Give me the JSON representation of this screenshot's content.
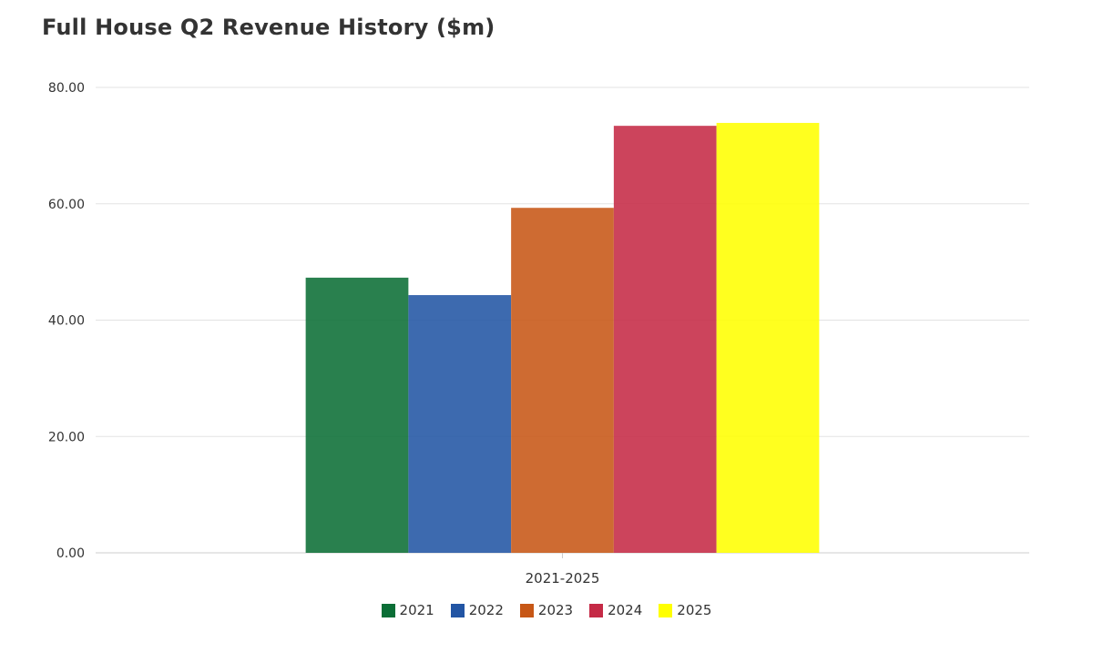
{
  "chart_data": {
    "type": "bar",
    "title": "Full House Q2 Revenue History ($m)",
    "categories": [
      "2021-2025"
    ],
    "series": [
      {
        "name": "2021",
        "color": "#0b6e36",
        "values": [
          47.3
        ]
      },
      {
        "name": "2022",
        "color": "#2255a4",
        "values": [
          44.3
        ]
      },
      {
        "name": "2023",
        "color": "#c75716",
        "values": [
          59.3
        ]
      },
      {
        "name": "2024",
        "color": "#c52a46",
        "values": [
          73.4
        ]
      },
      {
        "name": "2025",
        "color": "#ffff00",
        "values": [
          73.9
        ]
      }
    ],
    "ylim": [
      0,
      80
    ],
    "yticks": [
      "0.00",
      "20.00",
      "40.00",
      "60.00",
      "80.00"
    ],
    "xlabel": "",
    "ylabel": "",
    "grid": true,
    "legend": "bottom-center"
  }
}
